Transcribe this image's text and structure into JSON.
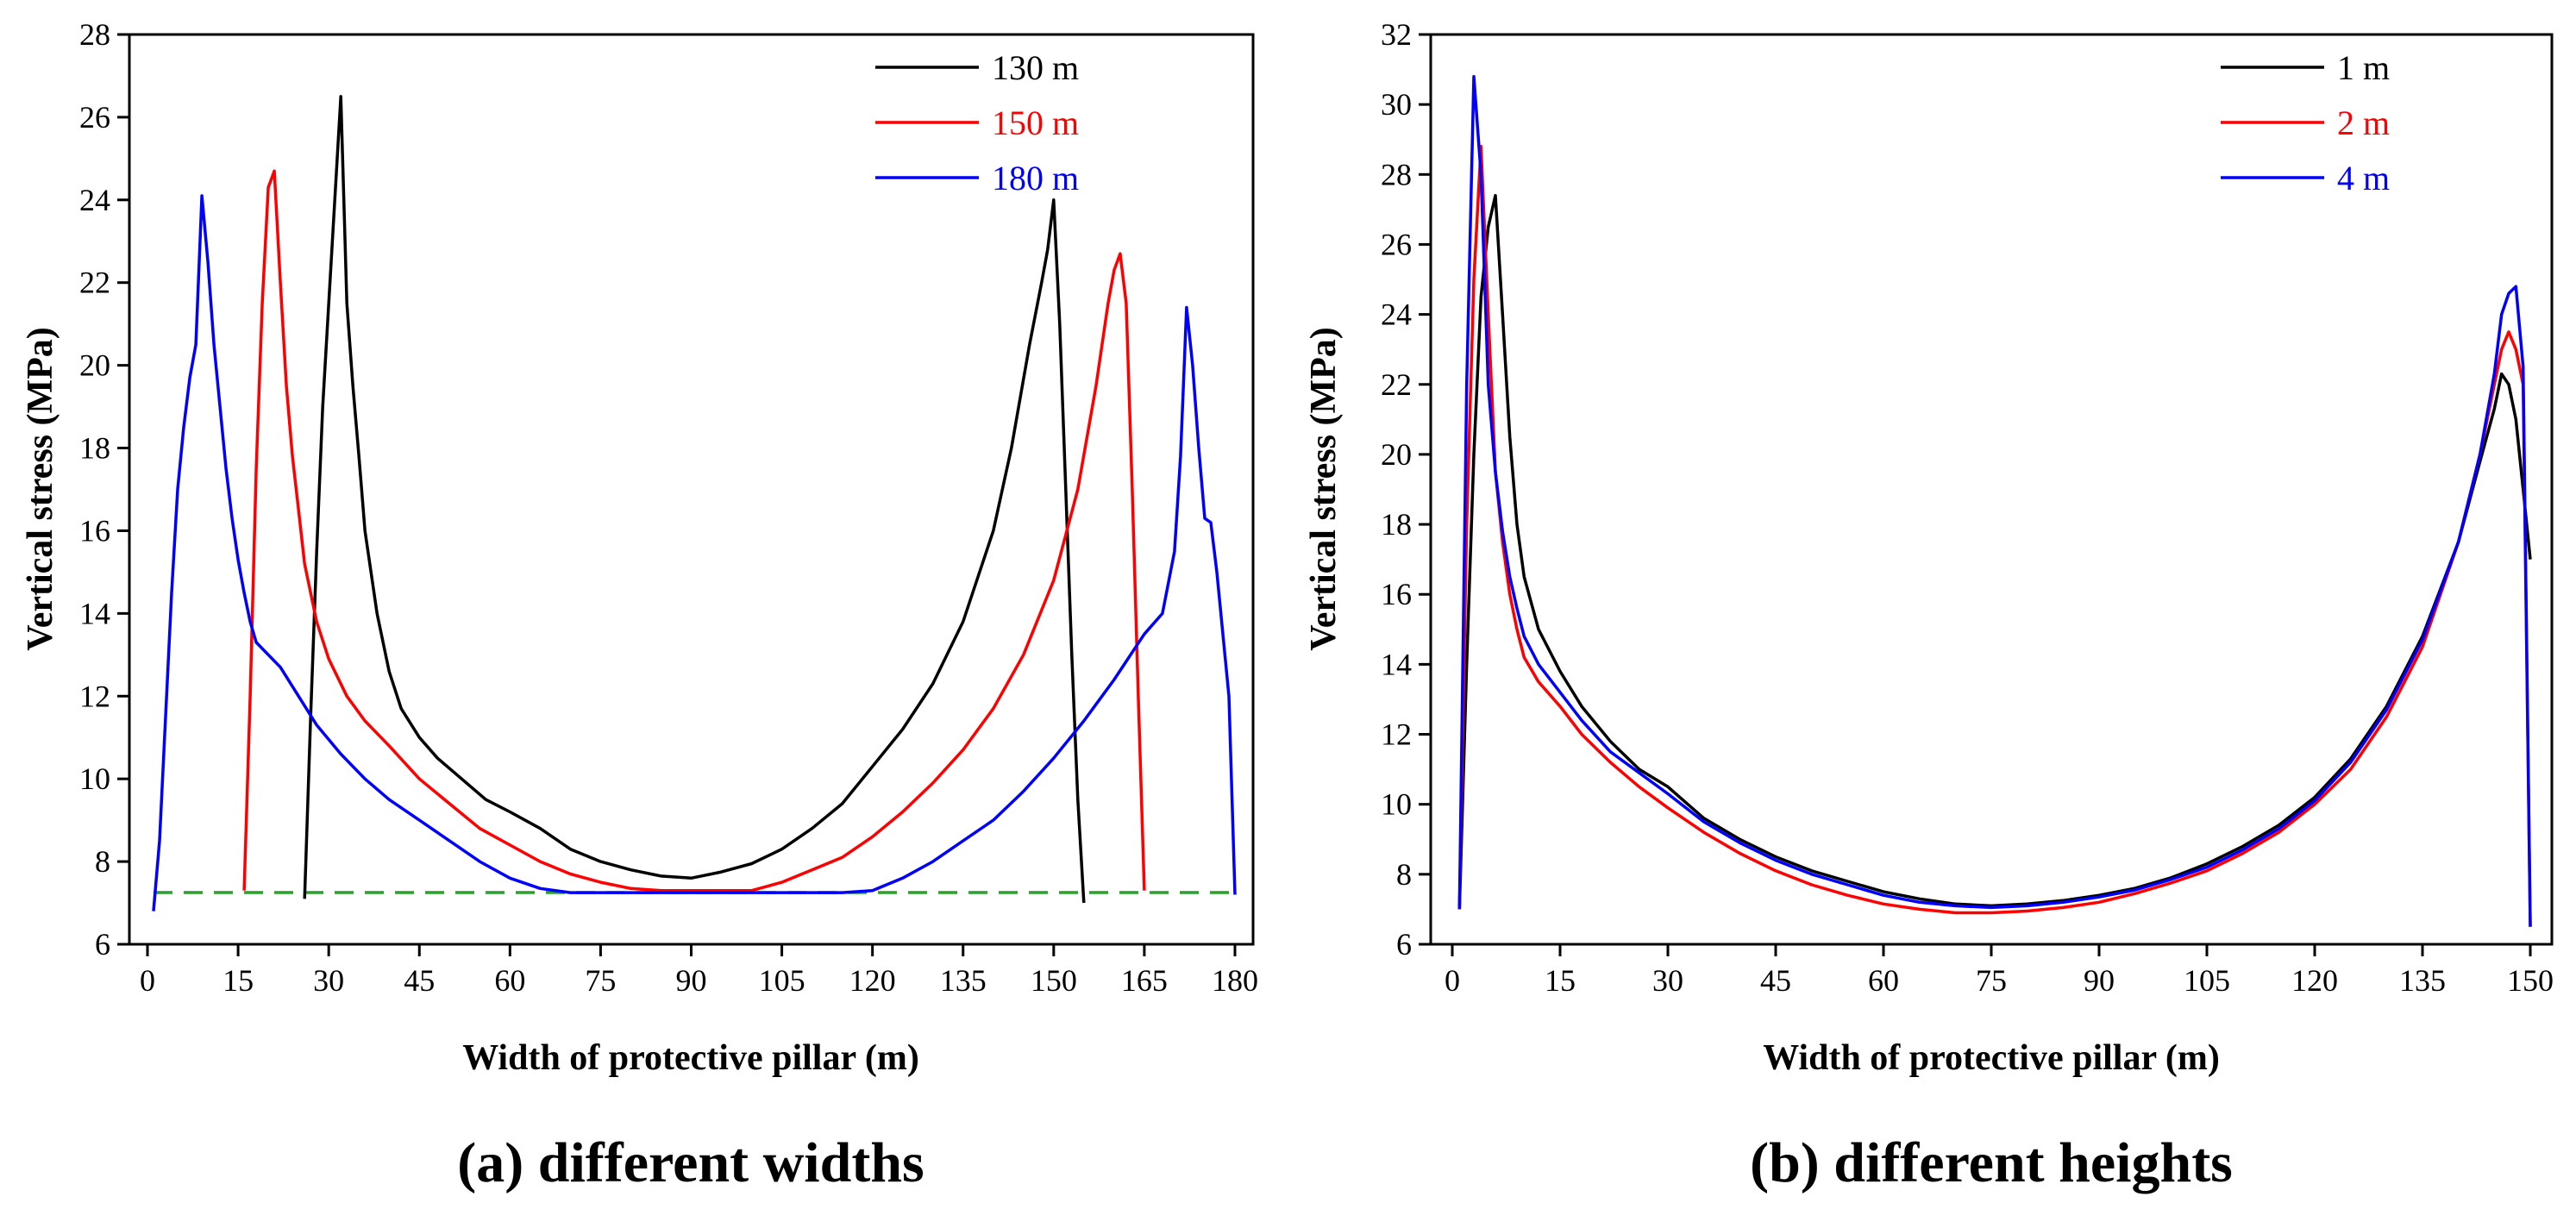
{
  "chart_data": [
    {
      "type": "line",
      "title": "(a) different widths",
      "xlabel": "Width of protective pillar (m)",
      "ylabel": "Vertical stress (MPa)",
      "xlim": [
        -3,
        183
      ],
      "ylim": [
        6,
        28
      ],
      "xticks": [
        0,
        15,
        30,
        45,
        60,
        75,
        90,
        105,
        120,
        135,
        150,
        165,
        180
      ],
      "yticks": [
        6,
        8,
        10,
        12,
        14,
        16,
        18,
        20,
        22,
        24,
        26,
        28
      ],
      "legend": "top-right",
      "reference_line": {
        "y": 7.25,
        "x_range": [
          1,
          180
        ],
        "style": "dashed",
        "color": "#2ca02c"
      },
      "series": [
        {
          "name": "130 m",
          "color": "#000000",
          "x": [
            26,
            27,
            28,
            29,
            30,
            31,
            32,
            33,
            34,
            35,
            36,
            38,
            40,
            42,
            45,
            48,
            52,
            56,
            60,
            65,
            70,
            75,
            80,
            85,
            90,
            95,
            100,
            105,
            110,
            115,
            120,
            125,
            130,
            135,
            140,
            143,
            146,
            148,
            149,
            150,
            151,
            152,
            153,
            154,
            155
          ],
          "y": [
            7.1,
            11.5,
            15.5,
            19.0,
            21.5,
            24.0,
            26.5,
            21.5,
            19.5,
            17.8,
            16.0,
            14.0,
            12.6,
            11.7,
            11.0,
            10.5,
            10.0,
            9.5,
            9.2,
            8.8,
            8.3,
            8.0,
            7.8,
            7.65,
            7.6,
            7.75,
            7.95,
            8.3,
            8.8,
            9.4,
            10.3,
            11.2,
            12.3,
            13.8,
            16.0,
            18.0,
            20.5,
            22.0,
            22.8,
            24.0,
            21.0,
            17.0,
            13.0,
            9.5,
            7.0
          ]
        },
        {
          "name": "150 m",
          "color": "#ff0000",
          "x": [
            16,
            17,
            18,
            19,
            20,
            21,
            22,
            23,
            24,
            25,
            26,
            28,
            30,
            33,
            36,
            40,
            45,
            50,
            55,
            60,
            65,
            70,
            75,
            80,
            85,
            90,
            95,
            100,
            105,
            110,
            115,
            120,
            125,
            130,
            135,
            140,
            145,
            150,
            154,
            157,
            159,
            160,
            161,
            162,
            163,
            164,
            165
          ],
          "y": [
            7.3,
            12.0,
            17.5,
            21.5,
            24.3,
            24.7,
            22.0,
            19.5,
            17.8,
            16.5,
            15.2,
            13.8,
            12.9,
            12.0,
            11.4,
            10.8,
            10.0,
            9.4,
            8.8,
            8.4,
            8.0,
            7.7,
            7.5,
            7.35,
            7.3,
            7.3,
            7.3,
            7.3,
            7.5,
            7.8,
            8.1,
            8.6,
            9.2,
            9.9,
            10.7,
            11.7,
            13.0,
            14.8,
            17.0,
            19.5,
            21.5,
            22.3,
            22.7,
            21.5,
            17.0,
            12.0,
            7.3
          ]
        },
        {
          "name": "180 m",
          "color": "#0000ff",
          "x": [
            1,
            2,
            3,
            4,
            5,
            6,
            7,
            8,
            9,
            10,
            11,
            12,
            13,
            14,
            15,
            16,
            17,
            18,
            20,
            22,
            25,
            28,
            32,
            36,
            40,
            45,
            50,
            55,
            60,
            65,
            70,
            75,
            80,
            90,
            100,
            110,
            115,
            120,
            125,
            130,
            135,
            140,
            145,
            150,
            155,
            160,
            165,
            168,
            170,
            171,
            172,
            173,
            174,
            175,
            176,
            177,
            178,
            179,
            180
          ],
          "y": [
            6.8,
            8.5,
            11.5,
            14.5,
            17.0,
            18.5,
            19.7,
            20.5,
            24.1,
            22.5,
            20.5,
            19.0,
            17.5,
            16.3,
            15.3,
            14.5,
            13.8,
            13.3,
            13.0,
            12.7,
            12.0,
            11.3,
            10.6,
            10.0,
            9.5,
            9.0,
            8.5,
            8.0,
            7.6,
            7.35,
            7.25,
            7.25,
            7.25,
            7.25,
            7.25,
            7.25,
            7.25,
            7.3,
            7.6,
            8.0,
            8.5,
            9.0,
            9.7,
            10.5,
            11.4,
            12.4,
            13.5,
            14.0,
            15.5,
            17.8,
            21.4,
            20.0,
            18.0,
            16.3,
            16.2,
            15.0,
            13.5,
            12.0,
            7.2
          ]
        }
      ]
    },
    {
      "type": "line",
      "title": "(b) different heights",
      "xlabel": "Width of protective pillar (m)",
      "ylabel": "Vertical stress (MPa)",
      "xlim": [
        -3,
        153
      ],
      "ylim": [
        6,
        32
      ],
      "xticks": [
        0,
        15,
        30,
        45,
        60,
        75,
        90,
        105,
        120,
        135,
        150
      ],
      "yticks": [
        6,
        8,
        10,
        12,
        14,
        16,
        18,
        20,
        22,
        24,
        26,
        28,
        30,
        32
      ],
      "legend": "top-right",
      "series": [
        {
          "name": "1 m",
          "color": "#000000",
          "x": [
            1,
            2,
            3,
            4,
            5,
            6,
            7,
            8,
            9,
            10,
            12,
            15,
            18,
            22,
            26,
            30,
            35,
            40,
            45,
            50,
            55,
            60,
            65,
            70,
            75,
            80,
            85,
            90,
            95,
            100,
            105,
            110,
            115,
            120,
            125,
            130,
            135,
            140,
            143,
            145,
            146,
            147,
            148,
            149,
            150
          ],
          "y": [
            7.0,
            14.0,
            20.0,
            24.5,
            26.5,
            27.4,
            24.0,
            20.5,
            18.0,
            16.5,
            15.0,
            13.8,
            12.8,
            11.8,
            11.0,
            10.5,
            9.6,
            9.0,
            8.5,
            8.1,
            7.8,
            7.5,
            7.3,
            7.15,
            7.1,
            7.15,
            7.25,
            7.4,
            7.6,
            7.9,
            8.3,
            8.8,
            9.4,
            10.2,
            11.3,
            12.8,
            14.8,
            17.5,
            19.8,
            21.3,
            22.3,
            22.0,
            21.0,
            19.0,
            17.0
          ]
        },
        {
          "name": "2 m",
          "color": "#ff0000",
          "x": [
            1,
            2,
            3,
            4,
            5,
            6,
            7,
            8,
            9,
            10,
            12,
            15,
            18,
            22,
            26,
            30,
            35,
            40,
            45,
            50,
            55,
            60,
            65,
            70,
            75,
            80,
            85,
            90,
            95,
            100,
            105,
            110,
            115,
            120,
            125,
            130,
            135,
            140,
            143,
            145,
            146,
            147,
            148,
            149,
            150
          ],
          "y": [
            7.0,
            18.0,
            25.0,
            28.8,
            24.0,
            19.5,
            17.5,
            16.0,
            15.0,
            14.2,
            13.5,
            12.8,
            12.0,
            11.2,
            10.5,
            9.9,
            9.2,
            8.6,
            8.1,
            7.7,
            7.4,
            7.15,
            7.0,
            6.9,
            6.9,
            6.95,
            7.05,
            7.2,
            7.45,
            7.75,
            8.1,
            8.6,
            9.2,
            10.0,
            11.0,
            12.5,
            14.5,
            17.5,
            20.0,
            22.0,
            23.0,
            23.5,
            23.0,
            22.0,
            6.5
          ]
        },
        {
          "name": "4 m",
          "color": "#0000ff",
          "x": [
            1,
            2,
            3,
            4,
            5,
            6,
            7,
            8,
            9,
            10,
            12,
            15,
            18,
            22,
            26,
            30,
            35,
            40,
            45,
            50,
            55,
            60,
            65,
            70,
            75,
            80,
            85,
            90,
            95,
            100,
            105,
            110,
            115,
            120,
            125,
            130,
            135,
            140,
            143,
            145,
            146,
            147,
            148,
            149,
            150
          ],
          "y": [
            7.0,
            22.0,
            30.8,
            28.0,
            22.0,
            19.5,
            17.8,
            16.5,
            15.6,
            14.8,
            14.0,
            13.2,
            12.4,
            11.5,
            10.9,
            10.3,
            9.5,
            8.9,
            8.4,
            8.0,
            7.7,
            7.4,
            7.2,
            7.1,
            7.05,
            7.1,
            7.2,
            7.35,
            7.55,
            7.85,
            8.2,
            8.7,
            9.3,
            10.1,
            11.2,
            12.7,
            14.7,
            17.5,
            20.0,
            22.3,
            24.0,
            24.6,
            24.8,
            22.5,
            6.5
          ]
        }
      ]
    }
  ]
}
